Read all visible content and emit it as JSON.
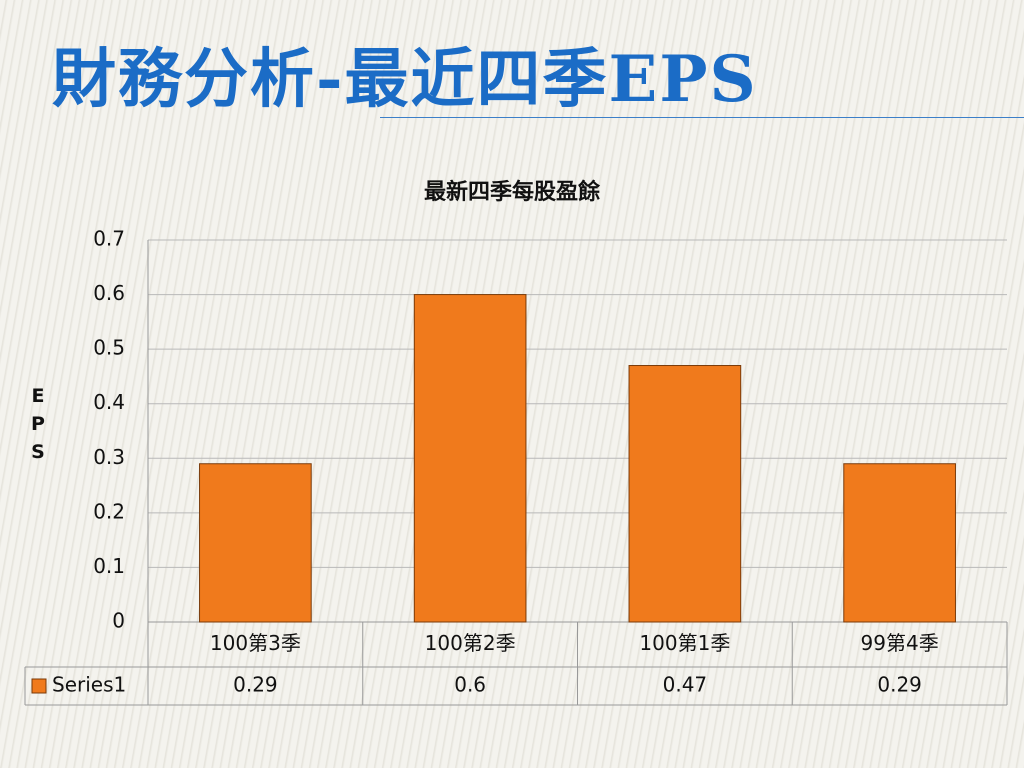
{
  "title": "財務分析-最近四季EPS",
  "chart_data": {
    "type": "bar",
    "title": "最新四季每股盈餘",
    "y_label": "EPS",
    "categories": [
      "100第3季",
      "100第2季",
      "100第1季",
      "99第4季"
    ],
    "series": [
      {
        "name": "Series1",
        "color": "#f07a1c",
        "values": [
          0.29,
          0.6,
          0.47,
          0.29
        ]
      }
    ],
    "ylim": [
      0,
      0.7
    ],
    "yticks": [
      0,
      0.1,
      0.2,
      0.3,
      0.4,
      0.5,
      0.6,
      0.7
    ],
    "grid": true
  }
}
